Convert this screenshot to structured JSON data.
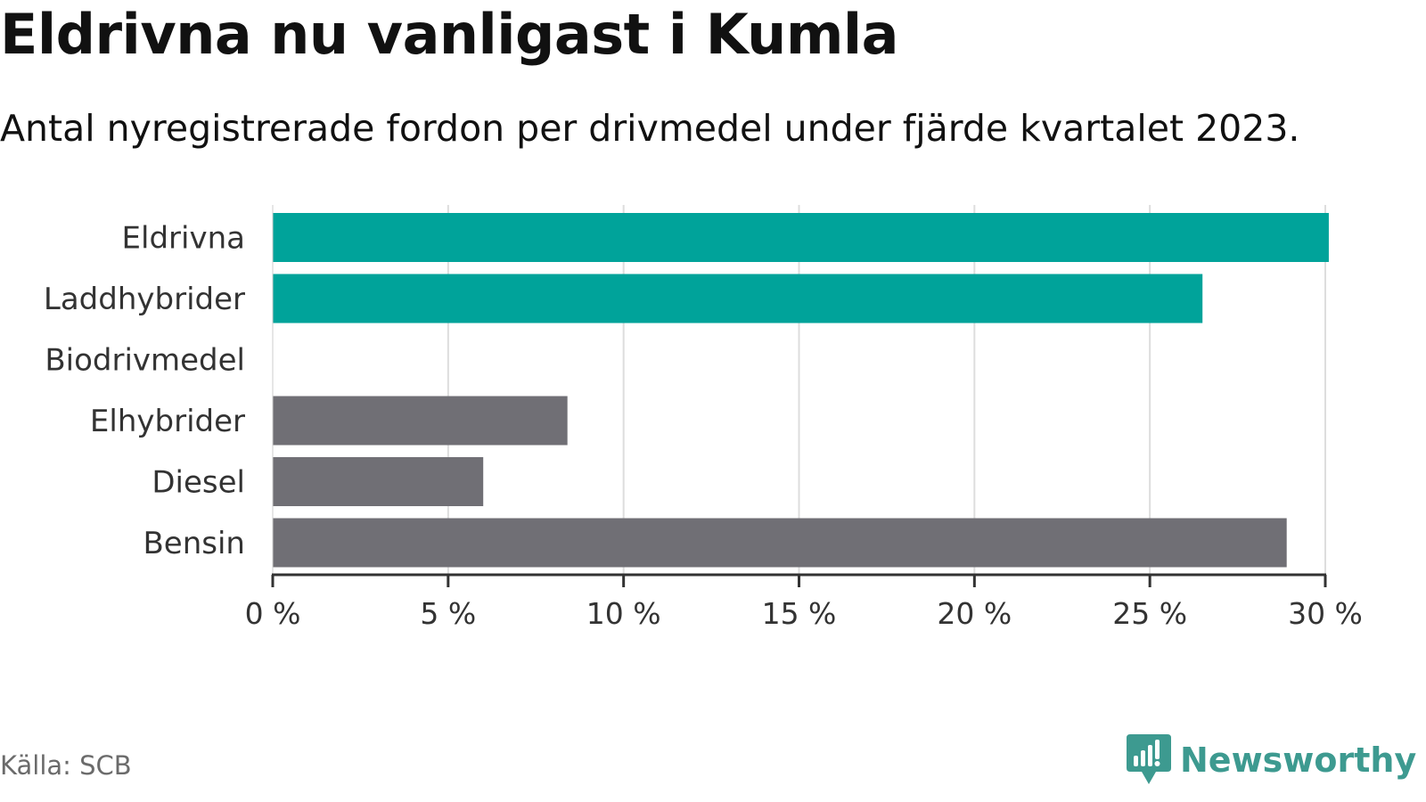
{
  "chart_data": {
    "type": "bar",
    "orientation": "horizontal",
    "title": "Eldrivna nu vanligast i Kumla",
    "subtitle": "Antal nyregistrerade fordon per drivmedel under fjärde kvartalet 2023.",
    "categories": [
      "Eldrivna",
      "Laddhybrider",
      "Biodrivmedel",
      "Elhybrider",
      "Diesel",
      "Bensin"
    ],
    "values": [
      30.1,
      26.5,
      0,
      8.4,
      6.0,
      28.9
    ],
    "bar_colors": [
      "#00a39a",
      "#00a39a",
      "#00a39a",
      "#706f75",
      "#706f75",
      "#706f75"
    ],
    "xlim": [
      0,
      30
    ],
    "xticks": [
      0,
      5,
      10,
      15,
      20,
      25,
      30
    ],
    "xtick_labels": [
      "0 %",
      "5 %",
      "10 %",
      "15 %",
      "20 %",
      "25 %",
      "30 %"
    ],
    "xlabel": "",
    "ylabel": "",
    "grid": "vertical",
    "grid_color": "#dddddd",
    "axis_color": "#333333"
  },
  "footer": {
    "source": "Källa: SCB",
    "brand": "Newsworthy",
    "brand_color": "#3d9a90"
  }
}
